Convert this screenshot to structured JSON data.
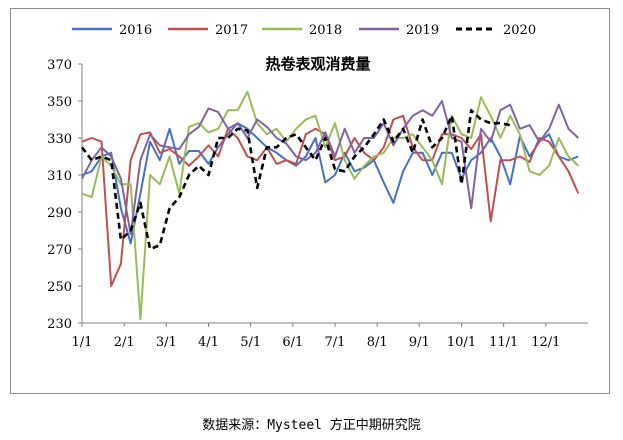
{
  "chart_data": {
    "type": "line",
    "title": "热卷表观消费量",
    "xlabel": "",
    "ylabel": "",
    "ylim": [
      230,
      370
    ],
    "yticks": [
      230,
      250,
      270,
      290,
      310,
      330,
      350,
      370
    ],
    "xticks": [
      "1/1",
      "2/1",
      "3/1",
      "4/1",
      "5/1",
      "6/1",
      "7/1",
      "8/1",
      "9/1",
      "10/1",
      "11/1",
      "12/1"
    ],
    "x_unit": "week index (0 = 1/1, 4.33 weeks per month)",
    "legend_position": "top",
    "series": [
      {
        "name": "2016",
        "color": "#4472c4",
        "dash": "",
        "x": [
          0,
          1,
          2,
          3,
          4,
          5,
          6,
          7,
          8,
          9,
          10,
          11,
          12,
          13,
          14,
          15,
          16,
          17,
          18,
          19,
          20,
          21,
          22,
          23,
          24,
          25,
          26,
          27,
          28,
          29,
          30,
          31,
          32,
          33,
          34,
          35,
          36,
          37,
          38,
          39,
          40,
          41,
          42,
          43,
          44,
          45,
          46,
          47,
          48,
          49,
          50,
          51
        ],
        "values": [
          310,
          312,
          320,
          322,
          292,
          273,
          300,
          328,
          318,
          335,
          316,
          323,
          323,
          316,
          325,
          332,
          338,
          335,
          330,
          325,
          322,
          318,
          315,
          320,
          330,
          306,
          310,
          322,
          312,
          314,
          318,
          306,
          295,
          312,
          322,
          322,
          310,
          322,
          322,
          308,
          318,
          322,
          330,
          320,
          305,
          331,
          320,
          328,
          332,
          320,
          318,
          320
        ]
      },
      {
        "name": "2017",
        "color": "#c0504d",
        "dash": "",
        "x": [
          0,
          1,
          2,
          3,
          4,
          5,
          6,
          7,
          8,
          9,
          10,
          11,
          12,
          13,
          14,
          15,
          16,
          17,
          18,
          19,
          20,
          21,
          22,
          23,
          24,
          25,
          26,
          27,
          28,
          29,
          30,
          31,
          32,
          33,
          34,
          35,
          36,
          37,
          38,
          39,
          40,
          41,
          42,
          43,
          44,
          45,
          46,
          47,
          48,
          49,
          50,
          51
        ],
        "values": [
          328,
          330,
          328,
          250,
          262,
          318,
          332,
          333,
          322,
          324,
          320,
          315,
          320,
          326,
          320,
          335,
          330,
          320,
          318,
          325,
          316,
          318,
          316,
          332,
          335,
          332,
          318,
          320,
          330,
          322,
          318,
          325,
          340,
          342,
          325,
          318,
          318,
          332,
          332,
          330,
          324,
          332,
          285,
          318,
          318,
          320,
          317,
          330,
          328,
          320,
          312,
          300
        ]
      },
      {
        "name": "2018",
        "color": "#9bbb59",
        "dash": "",
        "x": [
          0,
          1,
          2,
          3,
          4,
          5,
          6,
          7,
          8,
          9,
          10,
          11,
          12,
          13,
          14,
          15,
          16,
          17,
          18,
          19,
          20,
          21,
          22,
          23,
          24,
          25,
          26,
          27,
          28,
          29,
          30,
          31,
          32,
          33,
          34,
          35,
          36,
          37,
          38,
          39,
          40,
          41,
          42,
          43,
          44,
          45,
          46,
          47,
          48,
          49,
          50,
          51
        ],
        "values": [
          300,
          298,
          320,
          315,
          305,
          305,
          232,
          310,
          305,
          320,
          300,
          336,
          338,
          333,
          335,
          345,
          345,
          355,
          338,
          332,
          335,
          328,
          335,
          340,
          342,
          325,
          338,
          318,
          308,
          315,
          320,
          322,
          330,
          330,
          332,
          325,
          318,
          305,
          342,
          332,
          330,
          352,
          342,
          330,
          342,
          332,
          312,
          310,
          315,
          330,
          320,
          315
        ]
      },
      {
        "name": "2019",
        "color": "#8064a2",
        "dash": "",
        "x": [
          0,
          1,
          2,
          3,
          4,
          5,
          6,
          7,
          8,
          9,
          10,
          11,
          12,
          13,
          14,
          15,
          16,
          17,
          18,
          19,
          20,
          21,
          22,
          23,
          24,
          25,
          26,
          27,
          28,
          29,
          30,
          31,
          32,
          33,
          34,
          35,
          36,
          37,
          38,
          39,
          40,
          41,
          42,
          43,
          44,
          45,
          46,
          47,
          48,
          49,
          50,
          51
        ],
        "values": [
          308,
          318,
          325,
          320,
          308,
          278,
          318,
          332,
          326,
          325,
          324,
          332,
          336,
          346,
          344,
          335,
          338,
          330,
          340,
          336,
          330,
          327,
          320,
          318,
          322,
          333,
          320,
          335,
          322,
          330,
          330,
          338,
          326,
          335,
          342,
          345,
          342,
          350,
          330,
          328,
          292,
          335,
          328,
          345,
          348,
          335,
          337,
          328,
          335,
          348,
          335,
          330
        ]
      },
      {
        "name": "2020",
        "color": "#000000",
        "dash": "6,4",
        "x": [
          0,
          1,
          2,
          3,
          4,
          5,
          6,
          7,
          8,
          9,
          10,
          11,
          12,
          13,
          14,
          15,
          16,
          17,
          18,
          19,
          20,
          21,
          22,
          23,
          24,
          25,
          26,
          27,
          28,
          29,
          30,
          31,
          32,
          33,
          34,
          35,
          36,
          37,
          38,
          39,
          40,
          41,
          42,
          43,
          44
        ],
        "values": [
          325,
          318,
          320,
          318,
          275,
          280,
          295,
          270,
          272,
          292,
          298,
          310,
          315,
          310,
          330,
          330,
          335,
          334,
          303,
          325,
          325,
          330,
          332,
          325,
          318,
          330,
          313,
          312,
          320,
          325,
          332,
          340,
          328,
          335,
          322,
          340,
          325,
          330,
          342,
          305,
          345,
          340,
          338,
          338,
          337
        ]
      }
    ]
  },
  "source_note": "数据来源：Mysteel 方正中期研究院"
}
